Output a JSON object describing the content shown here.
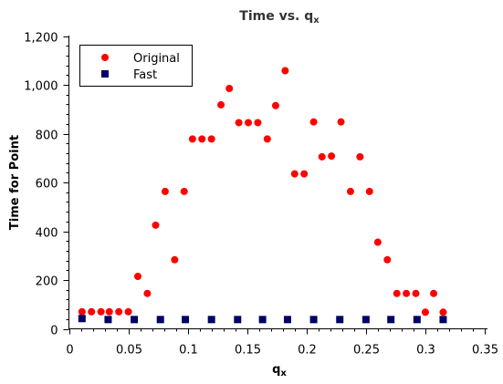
{
  "chart_data": {
    "type": "scatter",
    "title": "Time vs. q",
    "title_subscript": "x",
    "xlabel": "q",
    "xlabel_subscript": "x",
    "ylabel": "Time for Point",
    "xlim": [
      0,
      0.35
    ],
    "ylim": [
      0,
      1200
    ],
    "x_ticks": [
      0,
      0.05,
      0.1,
      0.15,
      0.2,
      0.25,
      0.3,
      0.35
    ],
    "x_tick_labels": [
      "0",
      "0.05",
      "0.1",
      "0.15",
      "0.2",
      "0.25",
      "0.3",
      "0.35"
    ],
    "y_ticks": [
      0,
      200,
      400,
      600,
      800,
      1000,
      1200
    ],
    "y_tick_labels": [
      "0",
      "200",
      "400",
      "600",
      "800",
      "1,000",
      "1,200"
    ],
    "grid": false,
    "legend_position": "top-left",
    "series": [
      {
        "name": "Original",
        "marker": "circle",
        "color": "#ff0000",
        "x": [
          0.011,
          0.019,
          0.027,
          0.034,
          0.042,
          0.05,
          0.058,
          0.066,
          0.073,
          0.081,
          0.089,
          0.097,
          0.104,
          0.112,
          0.12,
          0.128,
          0.135,
          0.143,
          0.151,
          0.159,
          0.167,
          0.174,
          0.182,
          0.19,
          0.198,
          0.206,
          0.213,
          0.221,
          0.229,
          0.237,
          0.245,
          0.253,
          0.26,
          0.268,
          0.276,
          0.284,
          0.292,
          0.3,
          0.307,
          0.315
        ],
        "y": [
          70,
          70,
          70,
          70,
          70,
          70,
          215,
          145,
          425,
          563,
          283,
          563,
          778,
          778,
          778,
          918,
          985,
          845,
          845,
          845,
          778,
          915,
          1058,
          635,
          635,
          848,
          705,
          708,
          848,
          563,
          705,
          563,
          355,
          283,
          145,
          145,
          145,
          68,
          145,
          68
        ]
      },
      {
        "name": "Fast",
        "marker": "square",
        "color": "#000066",
        "x": [
          0.011,
          0.033,
          0.055,
          0.077,
          0.098,
          0.12,
          0.142,
          0.163,
          0.184,
          0.206,
          0.228,
          0.25,
          0.271,
          0.293,
          0.315
        ],
        "y": [
          42,
          38,
          38,
          38,
          38,
          38,
          38,
          38,
          38,
          38,
          38,
          38,
          38,
          38,
          38
        ]
      }
    ]
  }
}
